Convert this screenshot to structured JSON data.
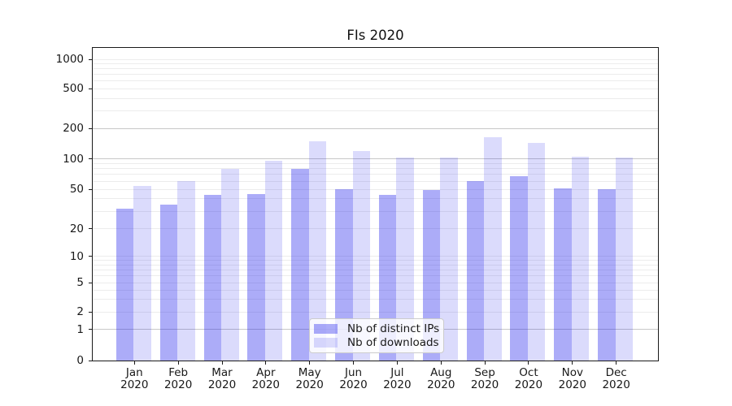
{
  "chart_data": {
    "type": "bar",
    "title": "FIs 2020",
    "categories": [
      "Jan 2020",
      "Feb 2020",
      "Mar 2020",
      "Apr 2020",
      "May 2020",
      "Jun 2020",
      "Jul 2020",
      "Aug 2020",
      "Sep 2020",
      "Oct 2020",
      "Nov 2020",
      "Dec 2020"
    ],
    "series": [
      {
        "name": "Nb of distinct IPs",
        "color": "rgba(25,25,235,0.36)",
        "values": [
          32,
          35,
          44,
          45,
          80,
          50,
          44,
          49,
          60,
          67,
          51,
          50
        ]
      },
      {
        "name": "Nb of downloads",
        "color": "rgba(25,25,235,0.155)",
        "values": [
          54,
          60,
          80,
          95,
          150,
          120,
          103,
          103,
          165,
          145,
          105,
          103
        ]
      }
    ],
    "yscale": "symlog",
    "yticks": [
      0,
      1,
      2,
      5,
      10,
      20,
      50,
      100,
      200,
      500,
      1000
    ],
    "ylim": [
      0,
      1320
    ],
    "xlabel": "",
    "ylabel": "",
    "grid": true,
    "legend_position": "lower center"
  },
  "colors": {
    "grid_minor": "#ececec",
    "grid_major": "#c8c8c8",
    "spine": "#1a1a1a",
    "text": "#191919"
  }
}
